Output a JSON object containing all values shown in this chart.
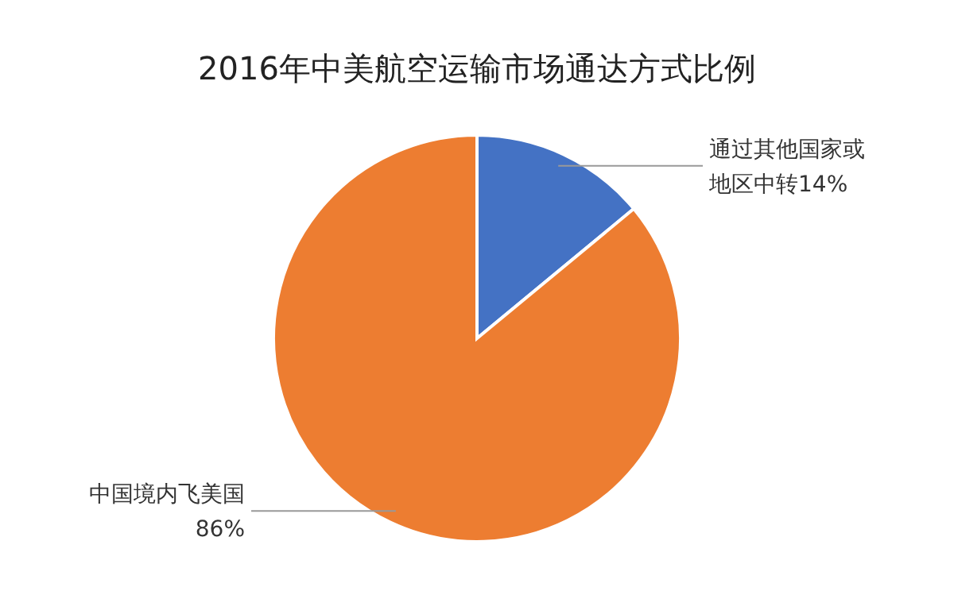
{
  "chart_data": {
    "type": "pie",
    "title": "2016年中美航空运输市场通达方式比例",
    "categories": [
      "通过其他国家或地区中转",
      "中国境内飞美国"
    ],
    "values": [
      14,
      86
    ],
    "colors": [
      "#4472c4",
      "#ed7d31"
    ],
    "value_labels": [
      "14%",
      "86%"
    ]
  }
}
